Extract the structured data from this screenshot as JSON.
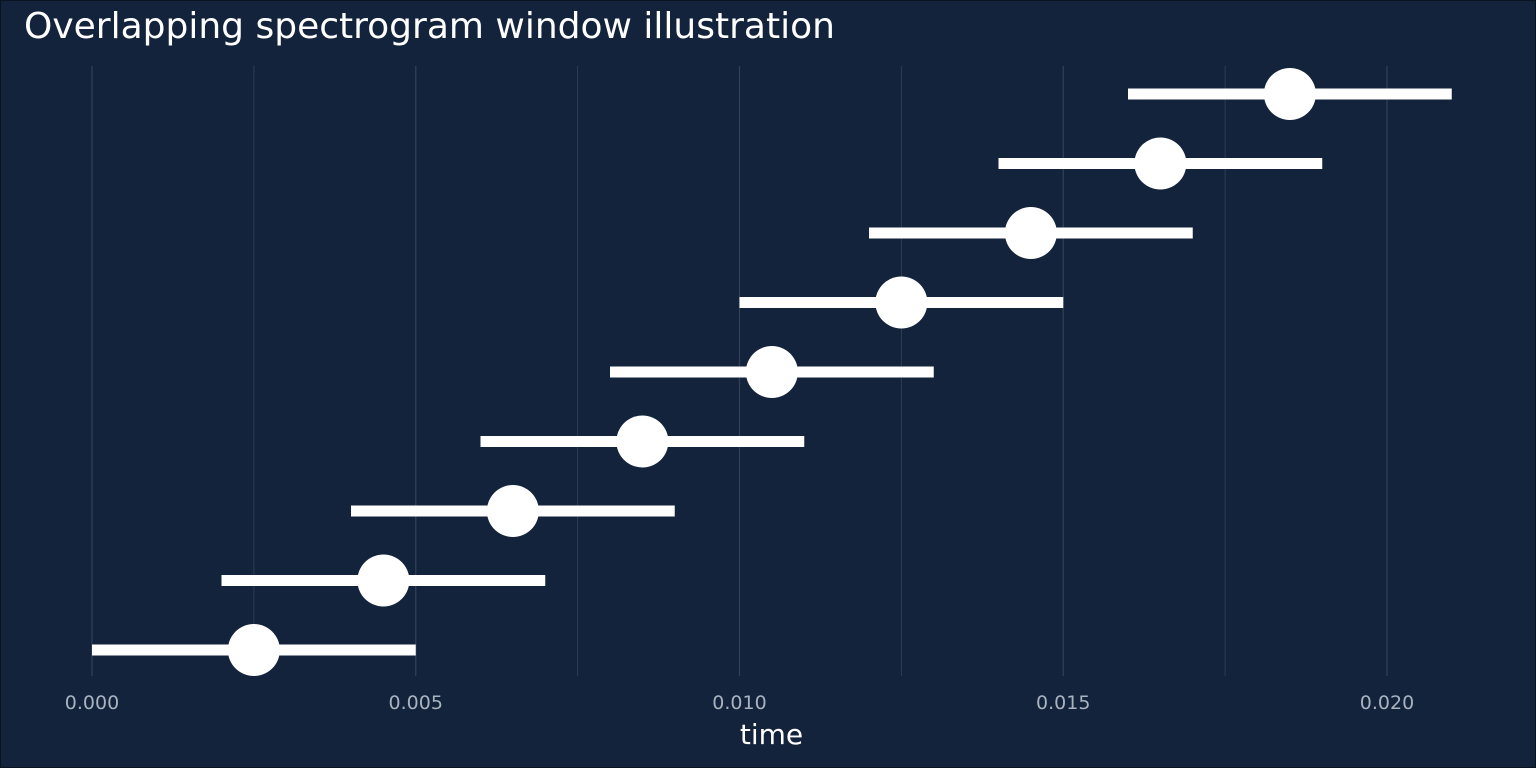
{
  "chart_data": {
    "type": "scatter",
    "title": "Overlapping spectrogram window illustration",
    "xlabel": "time",
    "ylabel": "",
    "xlim": [
      0.0,
      0.0219
    ],
    "x_ticks": [
      0.0,
      0.005,
      0.01,
      0.015,
      0.02
    ],
    "x_tick_labels": [
      "0.000",
      "0.005",
      "0.010",
      "0.015",
      "0.020"
    ],
    "x_minor_gridlines": [
      0.0025,
      0.0075,
      0.0125,
      0.0175
    ],
    "grid": "vertical",
    "legend": "none",
    "windows": [
      {
        "start": 0.0,
        "center": 0.0025,
        "end": 0.005
      },
      {
        "start": 0.002,
        "center": 0.0045,
        "end": 0.007
      },
      {
        "start": 0.004,
        "center": 0.0065,
        "end": 0.009
      },
      {
        "start": 0.006,
        "center": 0.0085,
        "end": 0.011
      },
      {
        "start": 0.008,
        "center": 0.0105,
        "end": 0.013
      },
      {
        "start": 0.01,
        "center": 0.0125,
        "end": 0.015
      },
      {
        "start": 0.012,
        "center": 0.0145,
        "end": 0.017
      },
      {
        "start": 0.014,
        "center": 0.0165,
        "end": 0.019
      },
      {
        "start": 0.016,
        "center": 0.0185,
        "end": 0.021
      }
    ]
  },
  "colors": {
    "background": "#13233b",
    "marks": "#ffffff",
    "grid": "#2f3f56",
    "tick_text": "#a9b2bf"
  }
}
